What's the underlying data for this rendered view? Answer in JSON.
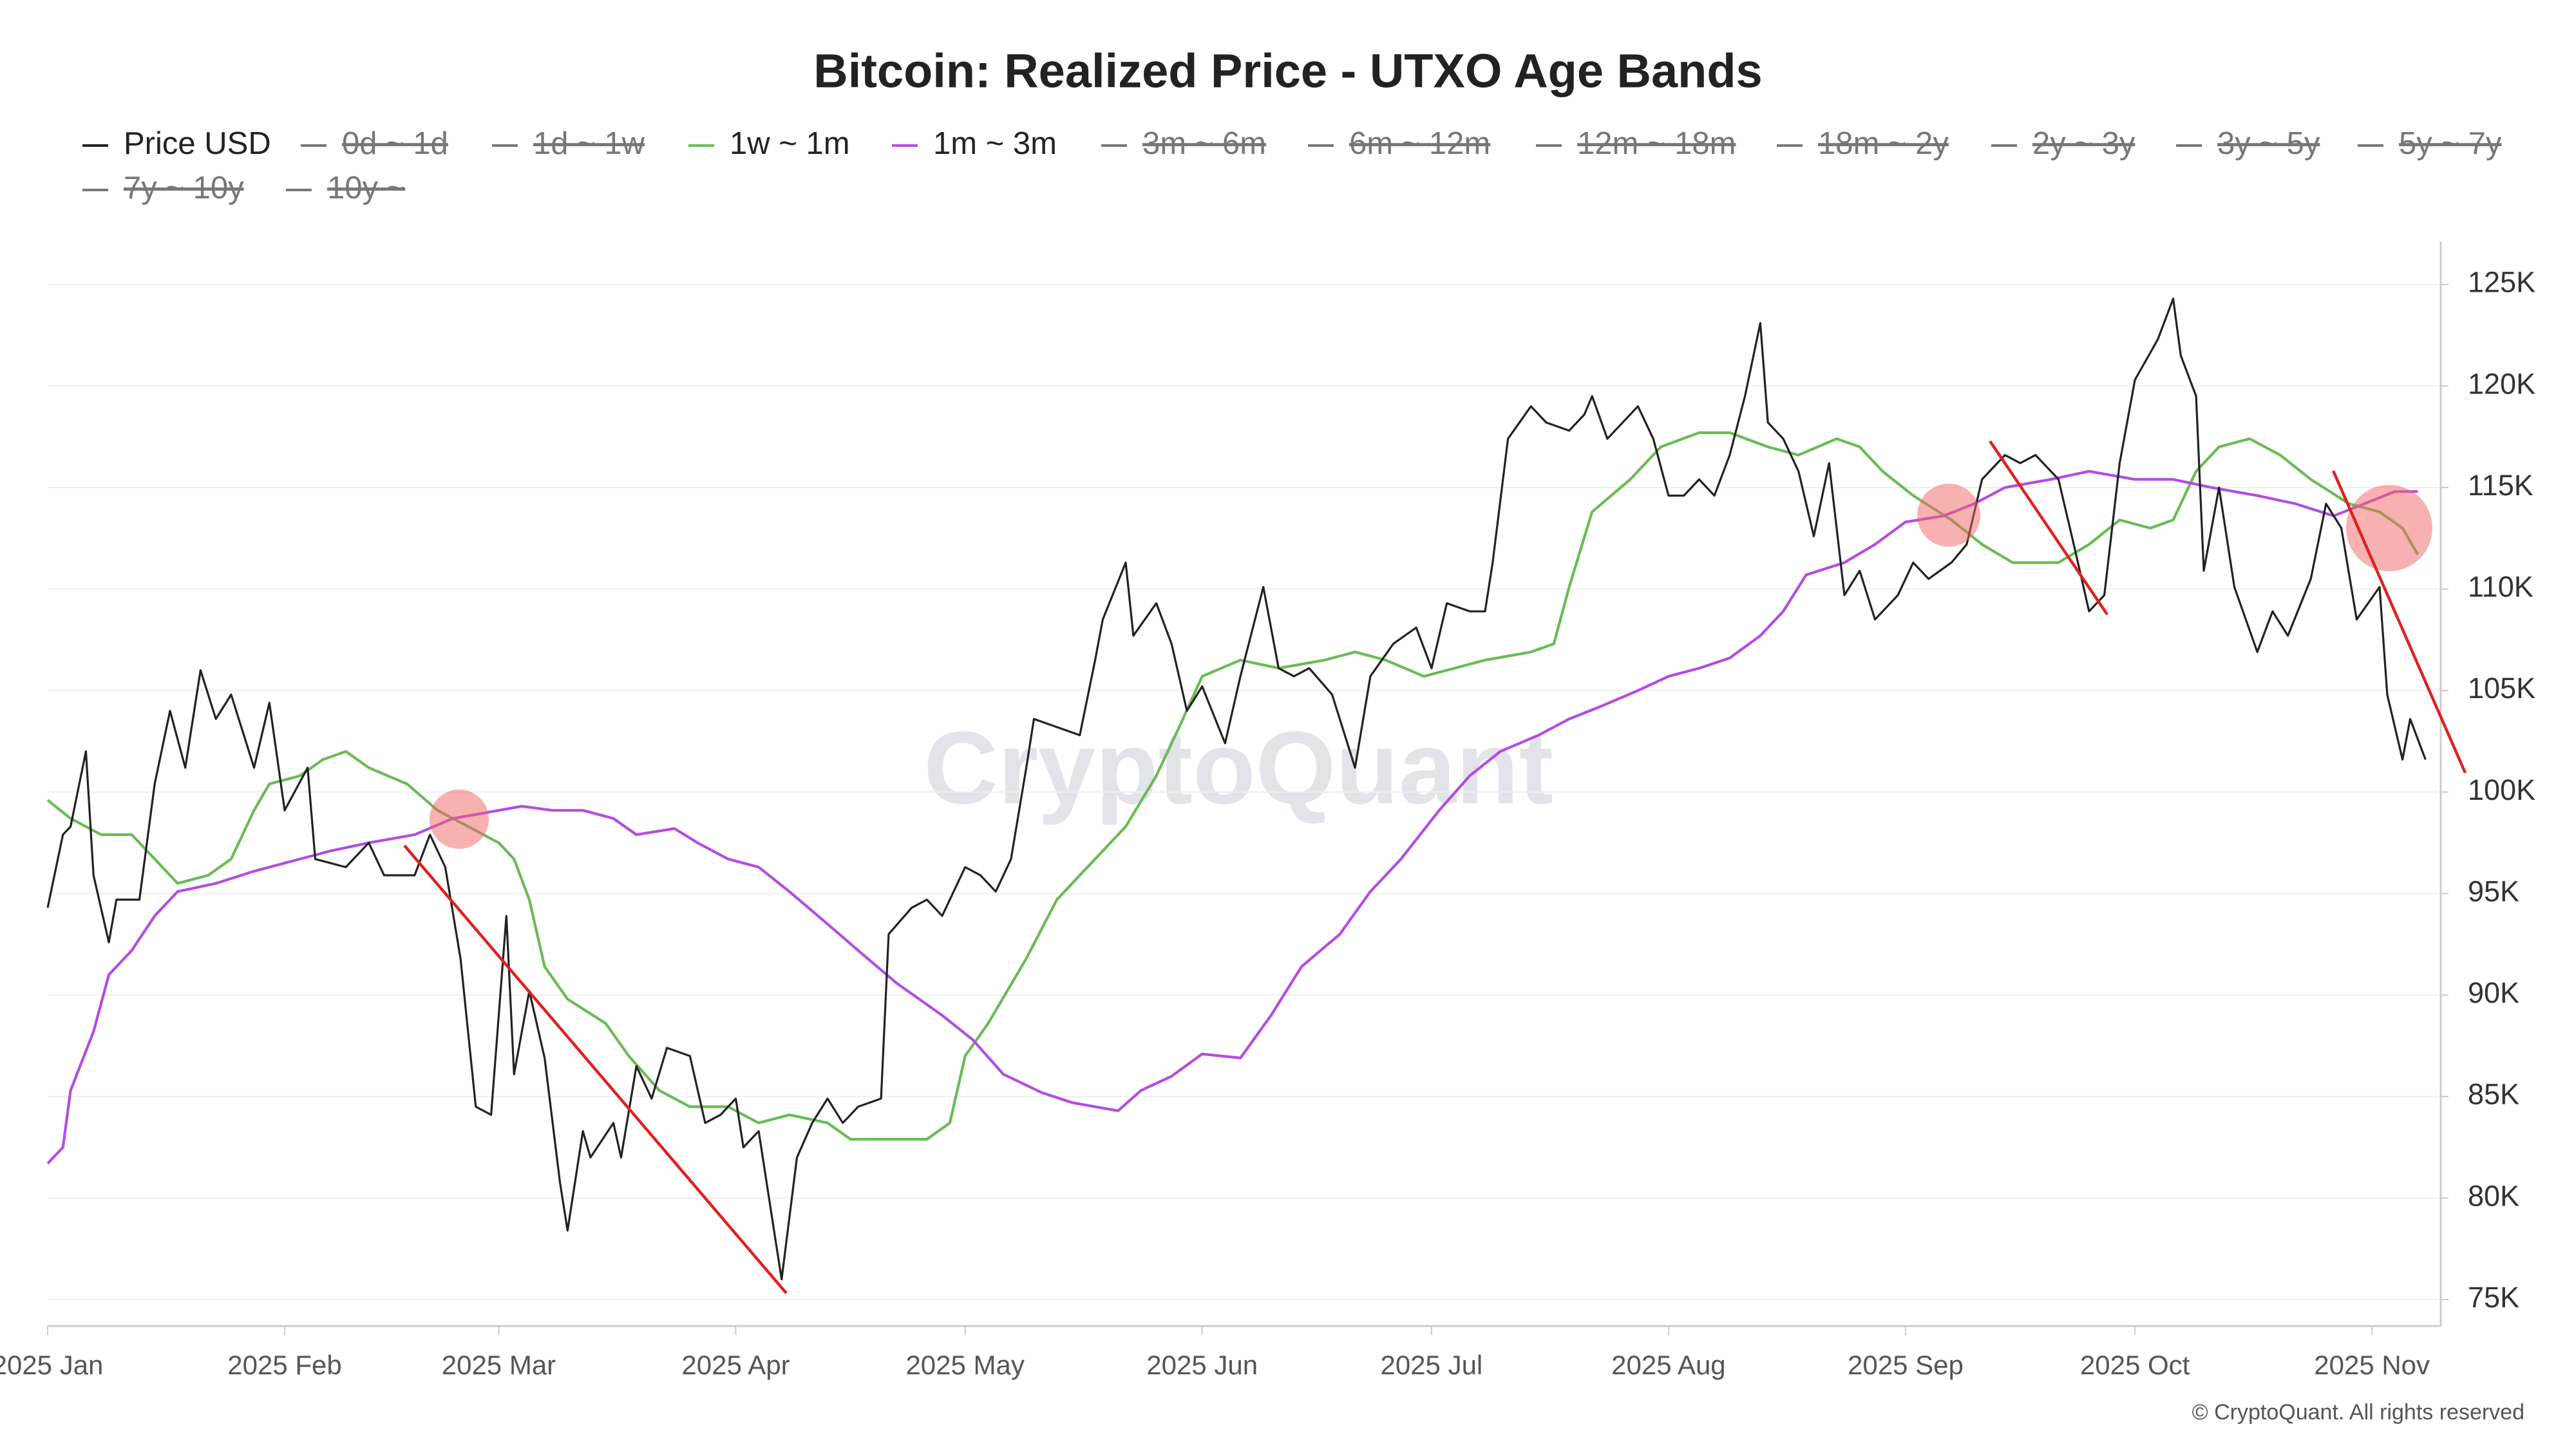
{
  "chart_data": {
    "type": "line",
    "title": "Bitcoin: Realized Price - UTXO Age Bands",
    "watermark": "CryptoQuant",
    "credit": "© CryptoQuant. All rights reserved",
    "xlim": [
      0,
      313
    ],
    "xticks": [
      {
        "value": 0,
        "label": "2025 Jan"
      },
      {
        "value": 31,
        "label": "2025 Feb"
      },
      {
        "value": 59,
        "label": "2025 Mar"
      },
      {
        "value": 90,
        "label": "2025 Apr"
      },
      {
        "value": 120,
        "label": "2025 May"
      },
      {
        "value": 151,
        "label": "2025 Jun"
      },
      {
        "value": 181,
        "label": "2025 Jul"
      },
      {
        "value": 212,
        "label": "2025 Aug"
      },
      {
        "value": 243,
        "label": "2025 Sep"
      },
      {
        "value": 273,
        "label": "2025 Oct"
      },
      {
        "value": 304,
        "label": "2025 Nov"
      }
    ],
    "ylim": [
      73.7,
      126.8
    ],
    "yticks": [
      {
        "value": 75,
        "label": "75K"
      },
      {
        "value": 80,
        "label": "80K"
      },
      {
        "value": 85,
        "label": "85K"
      },
      {
        "value": 90,
        "label": "90K"
      },
      {
        "value": 95,
        "label": "95K"
      },
      {
        "value": 100,
        "label": "100K"
      },
      {
        "value": 105,
        "label": "105K"
      },
      {
        "value": 110,
        "label": "110K"
      },
      {
        "value": 115,
        "label": "115K"
      },
      {
        "value": 120,
        "label": "120K"
      },
      {
        "value": 125,
        "label": "125K"
      }
    ],
    "grid": true,
    "series": [
      {
        "name": "Price USD",
        "color": "#222222",
        "x": [
          0,
          2,
          3,
          5,
          6,
          8,
          9,
          12,
          14,
          16,
          18,
          20,
          22,
          24,
          27,
          29,
          31,
          34,
          35,
          39,
          42,
          44,
          48,
          50,
          52,
          54,
          56,
          58,
          60,
          61,
          63,
          65,
          67,
          68,
          70,
          71,
          74,
          75,
          77,
          79,
          81,
          84,
          86,
          88,
          90,
          91,
          93,
          95,
          96,
          98,
          100,
          102,
          104,
          106,
          109,
          110,
          113,
          115,
          117,
          120,
          122,
          124,
          126,
          128,
          129,
          132,
          135,
          137,
          138,
          141,
          142,
          145,
          147,
          149,
          151,
          154,
          156,
          159,
          161,
          163,
          165,
          168,
          171,
          173,
          176,
          179,
          181,
          183,
          186,
          188,
          189,
          191,
          194,
          196,
          199,
          201,
          202,
          204,
          208,
          210,
          212,
          214,
          216,
          218,
          220,
          222,
          224,
          225,
          227,
          229,
          231,
          233,
          235,
          237,
          239,
          242,
          244,
          246,
          249,
          251,
          253,
          256,
          258,
          260,
          263,
          265,
          267,
          269,
          271,
          273,
          276,
          278,
          279,
          281,
          282,
          284,
          286,
          289,
          291,
          293,
          296,
          298,
          300,
          302,
          305,
          306,
          308,
          309,
          311
        ],
        "values": [
          94.3,
          97.9,
          98.3,
          102,
          95.9,
          92.6,
          94.7,
          94.7,
          100.4,
          104,
          101.2,
          106,
          103.6,
          104.8,
          101.2,
          104.4,
          99.1,
          101.2,
          96.7,
          96.3,
          97.5,
          95.9,
          95.9,
          97.9,
          96.3,
          91.8,
          84.5,
          84.1,
          93.9,
          86.1,
          90.2,
          86.9,
          80.8,
          78.4,
          83.3,
          82,
          83.7,
          82,
          86.5,
          84.9,
          87.4,
          87,
          83.7,
          84.1,
          84.9,
          82.5,
          83.3,
          78.4,
          76,
          82,
          83.7,
          84.9,
          83.7,
          84.5,
          84.9,
          93,
          94.3,
          94.7,
          93.9,
          96.3,
          95.9,
          95.1,
          96.7,
          101.2,
          103.6,
          103.2,
          102.8,
          106.5,
          108.5,
          111.3,
          107.7,
          109.3,
          107.3,
          104,
          105.2,
          102.4,
          105.7,
          110.1,
          106.1,
          105.7,
          106.1,
          104.8,
          101.2,
          105.7,
          107.3,
          108.1,
          106.1,
          109.3,
          108.9,
          108.9,
          111.3,
          117.4,
          119,
          118.2,
          117.8,
          118.6,
          119.5,
          117.4,
          119,
          117.4,
          114.6,
          114.6,
          115.4,
          114.6,
          116.6,
          119.5,
          123.1,
          118.2,
          117.4,
          115.8,
          112.6,
          116.2,
          109.7,
          110.9,
          108.5,
          109.7,
          111.3,
          110.5,
          111.3,
          112.2,
          115.4,
          116.6,
          116.2,
          116.6,
          115.4,
          112.2,
          108.9,
          109.7,
          116.2,
          120.3,
          122.3,
          124.3,
          121.5,
          119.5,
          110.9,
          115,
          110.1,
          106.9,
          108.9,
          107.7,
          110.5,
          114.2,
          113,
          108.5,
          110.1,
          104.8,
          101.6,
          103.6,
          101.6
        ]
      },
      {
        "name": "0d ~ 1d",
        "color": "#666666",
        "hidden": true
      },
      {
        "name": "1d ~ 1w",
        "color": "#666666",
        "hidden": true
      },
      {
        "name": "1w ~ 1m",
        "color": "#6abb55",
        "x": [
          0,
          3,
          7,
          11,
          14,
          17,
          21,
          24,
          27,
          29,
          33,
          36,
          39,
          42,
          47,
          51,
          55,
          59,
          61,
          63,
          65,
          68,
          73,
          76,
          80,
          84,
          89,
          93,
          97,
          102,
          105,
          110,
          115,
          118,
          120,
          123,
          128,
          132,
          136,
          141,
          145,
          148,
          151,
          156,
          161,
          167,
          171,
          175,
          180,
          184,
          188,
          194,
          197,
          199,
          202,
          207,
          211,
          216,
          220,
          225,
          229,
          234,
          237,
          240,
          244,
          249,
          253,
          257,
          263,
          267,
          271,
          275,
          278,
          281,
          284,
          288,
          292,
          296,
          301,
          305,
          308,
          310
        ],
        "values": [
          99.6,
          98.7,
          97.9,
          97.9,
          96.7,
          95.5,
          95.9,
          96.7,
          99.1,
          100.4,
          100.8,
          101.6,
          102,
          101.2,
          100.4,
          99.1,
          98.3,
          97.5,
          96.7,
          94.7,
          91.4,
          89.8,
          88.6,
          87,
          85.3,
          84.5,
          84.5,
          83.7,
          84.1,
          83.7,
          82.9,
          82.9,
          82.9,
          83.7,
          87,
          88.6,
          91.8,
          94.7,
          96.3,
          98.3,
          100.8,
          103.2,
          105.7,
          106.5,
          106.1,
          106.5,
          106.9,
          106.5,
          105.7,
          106.1,
          106.5,
          106.9,
          107.3,
          110.1,
          113.8,
          115.4,
          117,
          117.7,
          117.7,
          117,
          116.6,
          117.4,
          117,
          115.8,
          114.6,
          113.4,
          112.2,
          111.3,
          111.3,
          112.2,
          113.4,
          113,
          113.4,
          115.8,
          117,
          117.4,
          116.6,
          115.4,
          114.2,
          113.8,
          113,
          111.7
        ]
      },
      {
        "name": "1m ~ 3m",
        "color": "#b44ce0",
        "x": [
          0,
          2,
          3,
          6,
          8,
          11,
          14,
          17,
          22,
          27,
          33,
          37,
          42,
          48,
          53,
          59,
          62,
          66,
          70,
          74,
          77,
          82,
          85,
          89,
          93,
          97,
          102,
          106,
          111,
          117,
          121,
          125,
          130,
          134,
          140,
          143,
          147,
          151,
          156,
          160,
          164,
          169,
          173,
          177,
          182,
          186,
          190,
          195,
          199,
          203,
          208,
          212,
          216,
          220,
          224,
          227,
          230,
          235,
          239,
          243,
          248,
          252,
          256,
          262,
          267,
          273,
          278,
          283,
          289,
          294,
          299,
          303,
          307,
          310
        ],
        "values": [
          81.7,
          82.5,
          85.3,
          88.2,
          91,
          92.2,
          93.9,
          95.1,
          95.5,
          96.1,
          96.7,
          97.1,
          97.5,
          97.9,
          98.7,
          99.1,
          99.3,
          99.1,
          99.1,
          98.7,
          97.9,
          98.2,
          97.5,
          96.7,
          96.3,
          95.1,
          93.5,
          92.2,
          90.6,
          89,
          87.8,
          86.1,
          85.2,
          84.7,
          84.3,
          85.3,
          86,
          87.1,
          86.9,
          89,
          91.4,
          93,
          95.1,
          96.7,
          99.1,
          100.8,
          102,
          102.8,
          103.6,
          104.2,
          105,
          105.7,
          106.1,
          106.6,
          107.7,
          108.9,
          110.7,
          111.3,
          112.2,
          113.3,
          113.6,
          114.2,
          115,
          115.4,
          115.8,
          115.4,
          115.4,
          115,
          114.6,
          114.2,
          113.6,
          114.2,
          114.8,
          114.8
        ]
      },
      {
        "name": "3m ~ 6m",
        "color": "#666666",
        "hidden": true
      },
      {
        "name": "6m ~ 12m",
        "color": "#666666",
        "hidden": true
      },
      {
        "name": "12m ~ 18m",
        "color": "#666666",
        "hidden": true
      },
      {
        "name": "18m ~ 2y",
        "color": "#666666",
        "hidden": true
      },
      {
        "name": "2y ~ 3y",
        "color": "#666666",
        "hidden": true
      },
      {
        "name": "3y ~ 5y",
        "color": "#666666",
        "hidden": true
      },
      {
        "name": "5y ~ 7y",
        "color": "#666666",
        "hidden": true
      },
      {
        "name": "7y ~ 10y",
        "color": "#666666",
        "hidden": true
      },
      {
        "name": "10y ~",
        "color": "#666666",
        "hidden": true
      }
    ]
  }
}
